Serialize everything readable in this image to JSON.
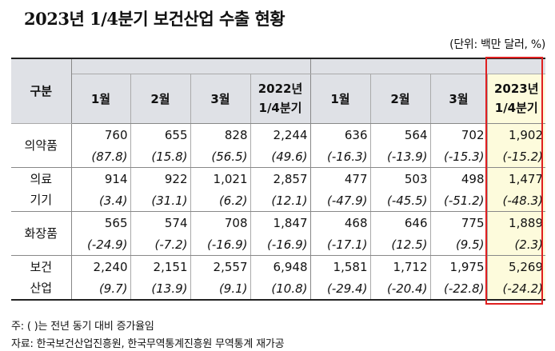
{
  "title": "2023년 1/4분기 보건산업 수출 현황",
  "unit": "(단위: 백만 달러, %)",
  "header": {
    "category": "구분",
    "columns": [
      "1월",
      "2월",
      "3월",
      "2022년\n1/4분기",
      "1월",
      "2월",
      "3월",
      "2023년\n1/4분기"
    ]
  },
  "rows": [
    {
      "label": "의약품",
      "values": [
        "760",
        "655",
        "828",
        "2,244",
        "636",
        "564",
        "702",
        "1,902"
      ],
      "pcts": [
        "(87.8)",
        "(15.8)",
        "(56.5)",
        "(49.6)",
        "(-16.3)",
        "(-13.9)",
        "(-15.3)",
        "(-15.2)"
      ]
    },
    {
      "label": "의료\n기기",
      "values": [
        "914",
        "922",
        "1,021",
        "2,857",
        "477",
        "503",
        "498",
        "1,477"
      ],
      "pcts": [
        "(3.4)",
        "(31.1)",
        "(6.2)",
        "(12.1)",
        "(-47.9)",
        "(-45.5)",
        "(-51.2)",
        "(-48.3)"
      ]
    },
    {
      "label": "화장품",
      "values": [
        "565",
        "574",
        "708",
        "1,847",
        "468",
        "646",
        "775",
        "1,889"
      ],
      "pcts": [
        "(-24.9)",
        "(-7.2)",
        "(-16.9)",
        "(-16.9)",
        "(-17.1)",
        "(12.5)",
        "(9.5)",
        "(2.3)"
      ]
    },
    {
      "label": "보건\n산업",
      "values": [
        "2,240",
        "2,151",
        "2,557",
        "6,948",
        "1,581",
        "1,712",
        "1,975",
        "5,269"
      ],
      "pcts": [
        "(9.7)",
        "(13.9)",
        "(9.1)",
        "(10.8)",
        "(-29.4)",
        "(-20.4)",
        "(-22.8)",
        "(-24.2)"
      ]
    }
  ],
  "notes": {
    "note1": "주: (   )는 전년 동기 대비 증가율임",
    "note2": "자료: 한국보건산업진흥원, 한국무역통계진흥원 무역통계 재가공"
  },
  "colors": {
    "header_bg": "#dfe1e6",
    "highlight_bg": "#fdfbdc",
    "highlight_border": "#e02020"
  }
}
